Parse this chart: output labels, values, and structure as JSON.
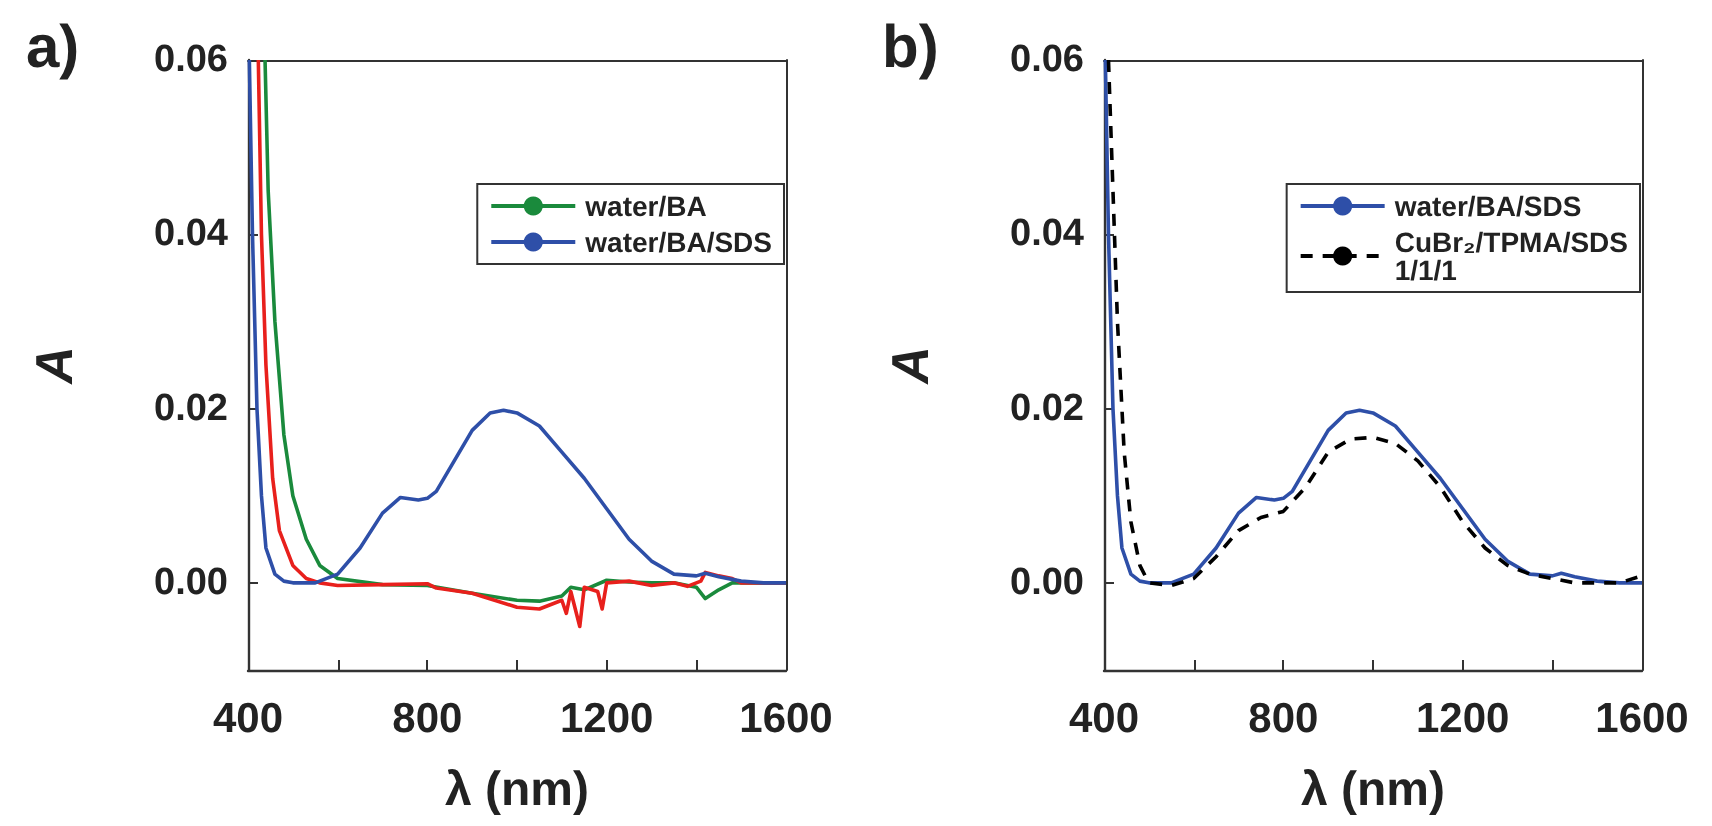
{
  "chart_data": [
    {
      "type": "line",
      "title": "a)",
      "xlabel": "λ (nm)",
      "ylabel": "A",
      "xlim": [
        400,
        1600
      ],
      "xticks": [
        400,
        {
          "value": 600,
          "label": null
        },
        800,
        {
          "value": 1000,
          "label": null
        },
        1200,
        {
          "value": 1400,
          "label": null
        },
        1600
      ],
      "ylim": [
        -0.01,
        0.06
      ],
      "yticks": [
        {
          "value": 0,
          "label": "0.00"
        },
        0.02,
        0.04,
        0.06
      ],
      "legend": "top right",
      "grid": false,
      "line_style": "solid",
      "marker": "none",
      "series": [
        {
          "name": "water/BA",
          "color": "#1a8a3c",
          "x": [
            438,
            445,
            460,
            480,
            500,
            530,
            560,
            600,
            700,
            800,
            900,
            1000,
            1050,
            1100,
            1120,
            1150,
            1200,
            1250,
            1300,
            1350,
            1400,
            1420,
            1450,
            1480,
            1600
          ],
          "values": [
            0.06,
            0.045,
            0.03,
            0.017,
            0.01,
            0.005,
            0.002,
            0.0005,
            -0.0002,
            -0.0003,
            -0.0012,
            -0.002,
            -0.0021,
            -0.0015,
            -0.0005,
            -0.0008,
            0.0003,
            0.0001,
            0,
            0,
            -0.0005,
            -0.0018,
            -0.0008,
            0,
            0
          ]
        },
        {
          "color": "#e8201c",
          "x": [
            423,
            430,
            440,
            455,
            470,
            500,
            530,
            560,
            600,
            700,
            800,
            820,
            900,
            950,
            1000,
            1050,
            1100,
            1110,
            1120,
            1140,
            1150,
            1180,
            1190,
            1200,
            1250,
            1300,
            1350,
            1380,
            1410,
            1420,
            1450,
            1480,
            1500,
            1550,
            1600
          ],
          "values": [
            0.06,
            0.04,
            0.025,
            0.012,
            0.006,
            0.002,
            0.0005,
            0,
            -0.0003,
            -0.0002,
            -0.0001,
            -0.0006,
            -0.0012,
            -0.002,
            -0.0028,
            -0.003,
            -0.002,
            -0.0035,
            -0.001,
            -0.005,
            -0.0005,
            -0.001,
            -0.003,
            0,
            0.0002,
            -0.0003,
            0,
            -0.0004,
            0.0002,
            0.0012,
            0.0008,
            0.0005,
            0,
            0,
            0
          ]
        },
        {
          "name": "water/BA/SDS",
          "color": "#2e4fa8",
          "x": [
            403,
            410,
            420,
            430,
            440,
            460,
            480,
            500,
            550,
            600,
            650,
            700,
            740,
            780,
            800,
            820,
            860,
            900,
            940,
            970,
            1000,
            1050,
            1100,
            1150,
            1200,
            1250,
            1300,
            1350,
            1400,
            1420,
            1450,
            1500,
            1550,
            1600
          ],
          "values": [
            0.06,
            0.04,
            0.02,
            0.01,
            0.004,
            0.001,
            0.0002,
            0,
            0,
            0.001,
            0.004,
            0.008,
            0.0098,
            0.0095,
            0.0097,
            0.0105,
            0.014,
            0.0175,
            0.0195,
            0.0198,
            0.0195,
            0.018,
            0.015,
            0.012,
            0.0085,
            0.005,
            0.0025,
            0.001,
            0.0008,
            0.0011,
            0.0007,
            0.0002,
            0,
            0
          ]
        }
      ]
    },
    {
      "type": "line",
      "title": "b)",
      "xlabel": "λ (nm)",
      "ylabel": "A",
      "xlim": [
        400,
        1600
      ],
      "xticks": [
        400,
        {
          "value": 600,
          "label": null
        },
        800,
        {
          "value": 1000,
          "label": null
        },
        1200,
        {
          "value": 1400,
          "label": null
        },
        1600
      ],
      "ylim": [
        -0.01,
        0.06
      ],
      "yticks": [
        {
          "value": 0,
          "label": "0.00"
        },
        0.02,
        0.04,
        0.06
      ],
      "legend": "top right",
      "grid": false,
      "marker": "none",
      "series": [
        {
          "name": "water/BA/SDS",
          "color": "#2e4fa8",
          "line_style": "solid",
          "x": [
            403,
            410,
            420,
            430,
            440,
            460,
            480,
            500,
            550,
            600,
            650,
            700,
            740,
            780,
            800,
            820,
            860,
            900,
            940,
            970,
            1000,
            1050,
            1100,
            1150,
            1200,
            1250,
            1300,
            1350,
            1400,
            1420,
            1450,
            1500,
            1550,
            1600
          ],
          "values": [
            0.06,
            0.04,
            0.02,
            0.01,
            0.004,
            0.001,
            0.0002,
            0,
            0,
            0.001,
            0.004,
            0.008,
            0.0098,
            0.0095,
            0.0097,
            0.0105,
            0.014,
            0.0175,
            0.0195,
            0.0198,
            0.0195,
            0.018,
            0.015,
            0.012,
            0.0085,
            0.005,
            0.0025,
            0.001,
            0.0008,
            0.0011,
            0.0007,
            0.0002,
            0,
            0
          ]
        },
        {
          "name": "CuBr₂/TPMA/SDS\n1/1/1",
          "color": "#000000",
          "line_style": "dashed",
          "x": [
            410,
            420,
            430,
            445,
            460,
            480,
            500,
            550,
            600,
            650,
            700,
            750,
            800,
            850,
            900,
            950,
            1000,
            1050,
            1100,
            1150,
            1200,
            1250,
            1300,
            1350,
            1400,
            1450,
            1500,
            1550,
            1600
          ],
          "values": [
            0.06,
            0.045,
            0.03,
            0.015,
            0.007,
            0.002,
            0,
            -0.0003,
            0.0005,
            0.003,
            0.006,
            0.0075,
            0.0082,
            0.011,
            0.015,
            0.0165,
            0.0167,
            0.016,
            0.014,
            0.011,
            0.007,
            0.004,
            0.002,
            0.001,
            0.0005,
            0,
            0,
            0,
            0.0008
          ]
        }
      ]
    }
  ]
}
